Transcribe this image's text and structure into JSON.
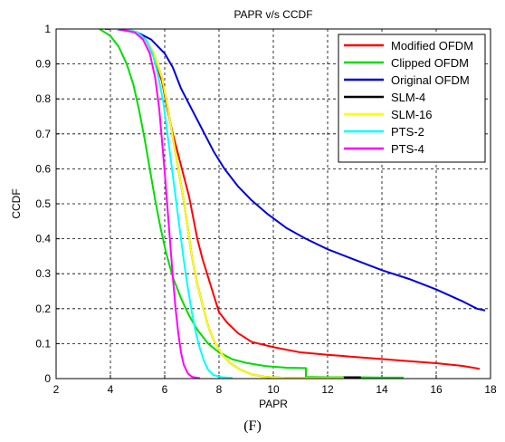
{
  "caption": "(F)",
  "chart_data": {
    "type": "line",
    "title": "PAPR v/s CCDF",
    "xlabel": "PAPR",
    "ylabel": "CCDF",
    "xlim": [
      2,
      18
    ],
    "ylim": [
      0,
      1
    ],
    "xticks": [
      2,
      4,
      6,
      8,
      10,
      12,
      14,
      16,
      18
    ],
    "yticks": [
      0,
      0.1,
      0.2,
      0.3,
      0.4,
      0.5,
      0.6,
      0.7,
      0.8,
      0.9,
      1
    ],
    "grid": true,
    "legend_position": "top-right",
    "series": [
      {
        "name": "Modified OFDM",
        "color": "#ff0000",
        "points": [
          [
            3.8,
            1
          ],
          [
            4.5,
            1
          ],
          [
            5.0,
            0.99
          ],
          [
            5.3,
            0.97
          ],
          [
            5.6,
            0.92
          ],
          [
            5.9,
            0.85
          ],
          [
            6.1,
            0.77
          ],
          [
            6.3,
            0.7
          ],
          [
            6.5,
            0.64
          ],
          [
            6.7,
            0.58
          ],
          [
            6.9,
            0.52
          ],
          [
            7.05,
            0.46
          ],
          [
            7.2,
            0.4
          ],
          [
            7.4,
            0.34
          ],
          [
            7.6,
            0.29
          ],
          [
            7.8,
            0.24
          ],
          [
            8.0,
            0.19
          ],
          [
            8.3,
            0.16
          ],
          [
            8.7,
            0.13
          ],
          [
            9.2,
            0.105
          ],
          [
            10,
            0.09
          ],
          [
            11,
            0.075
          ],
          [
            12,
            0.068
          ],
          [
            13,
            0.062
          ],
          [
            14,
            0.056
          ],
          [
            15,
            0.05
          ],
          [
            16,
            0.044
          ],
          [
            17,
            0.036
          ],
          [
            17.6,
            0.028
          ]
        ]
      },
      {
        "name": "Clipped OFDM",
        "color": "#00dd00",
        "points": [
          [
            3.6,
            1
          ],
          [
            4.0,
            0.98
          ],
          [
            4.3,
            0.95
          ],
          [
            4.6,
            0.9
          ],
          [
            4.85,
            0.84
          ],
          [
            5.05,
            0.77
          ],
          [
            5.25,
            0.69
          ],
          [
            5.45,
            0.6
          ],
          [
            5.65,
            0.51
          ],
          [
            5.85,
            0.43
          ],
          [
            6.05,
            0.36
          ],
          [
            6.3,
            0.29
          ],
          [
            6.6,
            0.23
          ],
          [
            6.9,
            0.18
          ],
          [
            7.2,
            0.14
          ],
          [
            7.6,
            0.1
          ],
          [
            8.0,
            0.075
          ],
          [
            8.5,
            0.055
          ],
          [
            9.0,
            0.045
          ],
          [
            9.7,
            0.036
          ],
          [
            10.5,
            0.031
          ],
          [
            11.2,
            0.03
          ],
          [
            11.2,
            0.005
          ],
          [
            12,
            0.004
          ],
          [
            13,
            0.004
          ],
          [
            14,
            0.003
          ],
          [
            14.8,
            0.003
          ]
        ]
      },
      {
        "name": "Original OFDM",
        "color": "#0000dd",
        "points": [
          [
            4.2,
            1
          ],
          [
            5.0,
            0.99
          ],
          [
            5.5,
            0.97
          ],
          [
            6.0,
            0.93
          ],
          [
            6.3,
            0.89
          ],
          [
            6.6,
            0.83
          ],
          [
            7.0,
            0.77
          ],
          [
            7.4,
            0.71
          ],
          [
            7.8,
            0.65
          ],
          [
            8.2,
            0.6
          ],
          [
            8.7,
            0.55
          ],
          [
            9.2,
            0.51
          ],
          [
            9.8,
            0.47
          ],
          [
            10.5,
            0.43
          ],
          [
            11.2,
            0.4
          ],
          [
            12,
            0.37
          ],
          [
            13,
            0.34
          ],
          [
            14,
            0.31
          ],
          [
            15,
            0.285
          ],
          [
            16,
            0.255
          ],
          [
            17,
            0.22
          ],
          [
            17.5,
            0.2
          ],
          [
            17.8,
            0.195
          ]
        ]
      },
      {
        "name": "SLM-4",
        "color": "#000000",
        "points": [
          [
            4.0,
            1
          ],
          [
            4.6,
            1
          ],
          [
            5.0,
            0.99
          ],
          [
            5.3,
            0.97
          ],
          [
            5.6,
            0.93
          ],
          [
            5.9,
            0.86
          ],
          [
            6.1,
            0.78
          ],
          [
            6.3,
            0.69
          ],
          [
            6.5,
            0.6
          ],
          [
            6.7,
            0.51
          ],
          [
            6.85,
            0.43
          ],
          [
            7.0,
            0.35
          ],
          [
            7.2,
            0.27
          ],
          [
            7.4,
            0.21
          ],
          [
            7.6,
            0.15
          ],
          [
            7.8,
            0.11
          ],
          [
            8.1,
            0.07
          ],
          [
            8.4,
            0.045
          ],
          [
            8.8,
            0.025
          ],
          [
            9.2,
            0.012
          ],
          [
            9.7,
            0.005
          ],
          [
            10.5,
            0.002
          ],
          [
            11.5,
            0.002
          ],
          [
            12.6,
            0.002
          ],
          [
            12.6,
            0.004
          ],
          [
            13.2,
            0.004
          ],
          [
            13.2,
            0.002
          ]
        ]
      },
      {
        "name": "SLM-16",
        "color": "#ffff00",
        "points": [
          [
            4.0,
            1
          ],
          [
            4.6,
            1
          ],
          [
            5.0,
            0.99
          ],
          [
            5.3,
            0.97
          ],
          [
            5.6,
            0.93
          ],
          [
            5.9,
            0.86
          ],
          [
            6.1,
            0.78
          ],
          [
            6.3,
            0.69
          ],
          [
            6.5,
            0.6
          ],
          [
            6.7,
            0.51
          ],
          [
            6.85,
            0.43
          ],
          [
            7.0,
            0.35
          ],
          [
            7.2,
            0.27
          ],
          [
            7.4,
            0.21
          ],
          [
            7.6,
            0.15
          ],
          [
            7.8,
            0.11
          ],
          [
            8.1,
            0.07
          ],
          [
            8.4,
            0.045
          ],
          [
            8.8,
            0.025
          ],
          [
            9.2,
            0.012
          ],
          [
            9.7,
            0.005
          ],
          [
            10.5,
            0.002
          ],
          [
            11.5,
            0.002
          ],
          [
            12.6,
            0.002
          ]
        ]
      },
      {
        "name": "PTS-2",
        "color": "#00ffff",
        "points": [
          [
            4.5,
            1
          ],
          [
            5.0,
            0.99
          ],
          [
            5.3,
            0.97
          ],
          [
            5.55,
            0.93
          ],
          [
            5.75,
            0.87
          ],
          [
            5.95,
            0.79
          ],
          [
            6.1,
            0.7
          ],
          [
            6.25,
            0.61
          ],
          [
            6.4,
            0.52
          ],
          [
            6.55,
            0.43
          ],
          [
            6.7,
            0.34
          ],
          [
            6.85,
            0.26
          ],
          [
            7.0,
            0.19
          ],
          [
            7.15,
            0.13
          ],
          [
            7.3,
            0.085
          ],
          [
            7.45,
            0.05
          ],
          [
            7.6,
            0.025
          ],
          [
            7.8,
            0.01
          ],
          [
            8.1,
            0.004
          ],
          [
            8.5,
            0.002
          ]
        ]
      },
      {
        "name": "PTS-4",
        "color": "#ff00ff",
        "points": [
          [
            4.3,
            1
          ],
          [
            4.9,
            0.99
          ],
          [
            5.2,
            0.97
          ],
          [
            5.45,
            0.93
          ],
          [
            5.65,
            0.86
          ],
          [
            5.8,
            0.77
          ],
          [
            5.9,
            0.68
          ],
          [
            6.0,
            0.59
          ],
          [
            6.1,
            0.49
          ],
          [
            6.2,
            0.39
          ],
          [
            6.3,
            0.29
          ],
          [
            6.4,
            0.2
          ],
          [
            6.5,
            0.13
          ],
          [
            6.6,
            0.075
          ],
          [
            6.7,
            0.04
          ],
          [
            6.85,
            0.015
          ],
          [
            7.0,
            0.005
          ],
          [
            7.3,
            0.001
          ]
        ]
      }
    ]
  }
}
